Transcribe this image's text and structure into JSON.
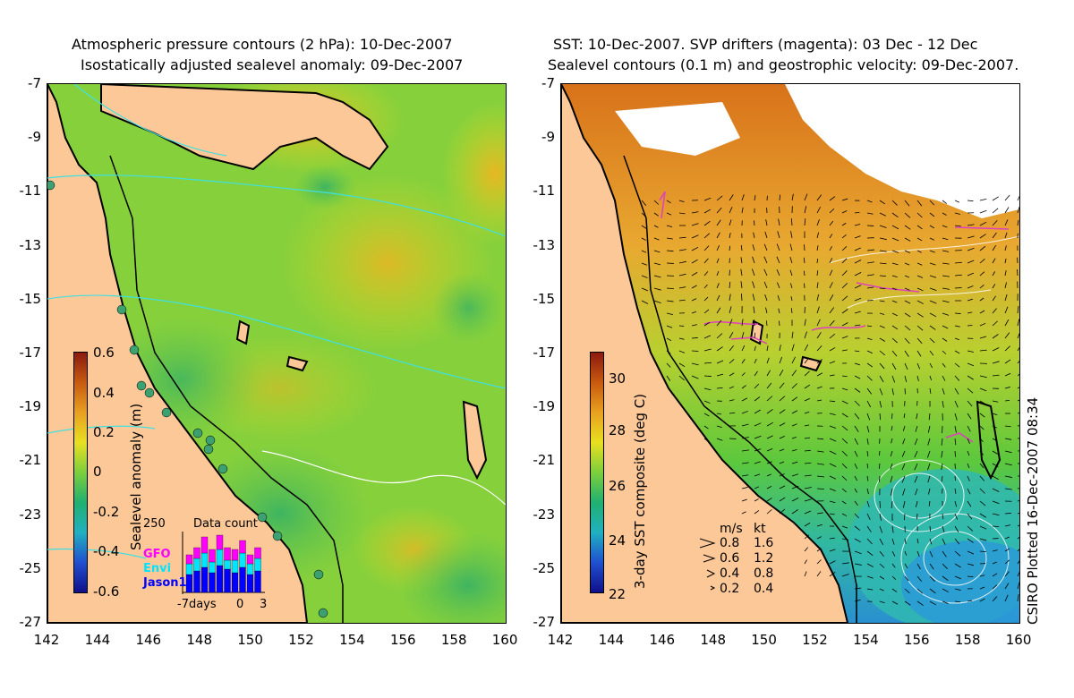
{
  "left": {
    "title_line1": "Atmospheric pressure contours (2 hPa): 10-Dec-2007",
    "title_line2": "Isostatically adjusted sealevel anomaly: 09-Dec-2007",
    "colorbar_label": "Sealevel anomaly (m)",
    "colorbar_ticks": [
      "0.6",
      "0.4",
      "0.2",
      "0",
      "-0.2",
      "-0.4",
      "-0.6"
    ],
    "inset": {
      "title": "Data count",
      "ymax": "250",
      "legend": [
        {
          "label": "GFO",
          "color": "#ff00ff"
        },
        {
          "label": "Envi",
          "color": "#00e5ff"
        },
        {
          "label": "Jason1",
          "color": "#0000ff"
        }
      ],
      "x_left": "-7days",
      "x_mid": "0",
      "x_right": "3"
    }
  },
  "right": {
    "title_line1": "SST: 10-Dec-2007. SVP drifters (magenta): 03 Dec - 12 Dec",
    "title_line2": "Sealevel contours (0.1 m) and geostrophic velocity: 09-Dec-2007.",
    "colorbar_label": "3-day SST composite (deg C)",
    "colorbar_ticks": [
      "30",
      "28",
      "26",
      "24",
      "22"
    ],
    "speed_legend": {
      "header_ms": "m/s",
      "header_kt": "kt",
      "rows": [
        {
          "ms": "0.8",
          "kt": "1.6"
        },
        {
          "ms": "0.6",
          "kt": "1.2"
        },
        {
          "ms": "0.4",
          "kt": "0.8"
        },
        {
          "ms": "0.2",
          "kt": "0.4"
        }
      ]
    }
  },
  "y_ticks": [
    "-7",
    "-9",
    "-11",
    "-13",
    "-15",
    "-17",
    "-19",
    "-21",
    "-23",
    "-25",
    "-27"
  ],
  "x_ticks": [
    "142",
    "144",
    "146",
    "148",
    "150",
    "152",
    "154",
    "156",
    "158",
    "160"
  ],
  "credit": "CSIRO Plotted 16-Dec-2007 08:34",
  "colors": {
    "land": "#fcc898",
    "ocean_mid": "#7fd33a",
    "ocean_warm": "#e8d51c",
    "ocean_cool": "#3bb86a",
    "sst_warm": "#e69a30",
    "sst_green": "#65c83a",
    "sst_cool": "#2ab8c0",
    "drifter": "#e040c0",
    "contour_atm": "#40e0e0"
  }
}
